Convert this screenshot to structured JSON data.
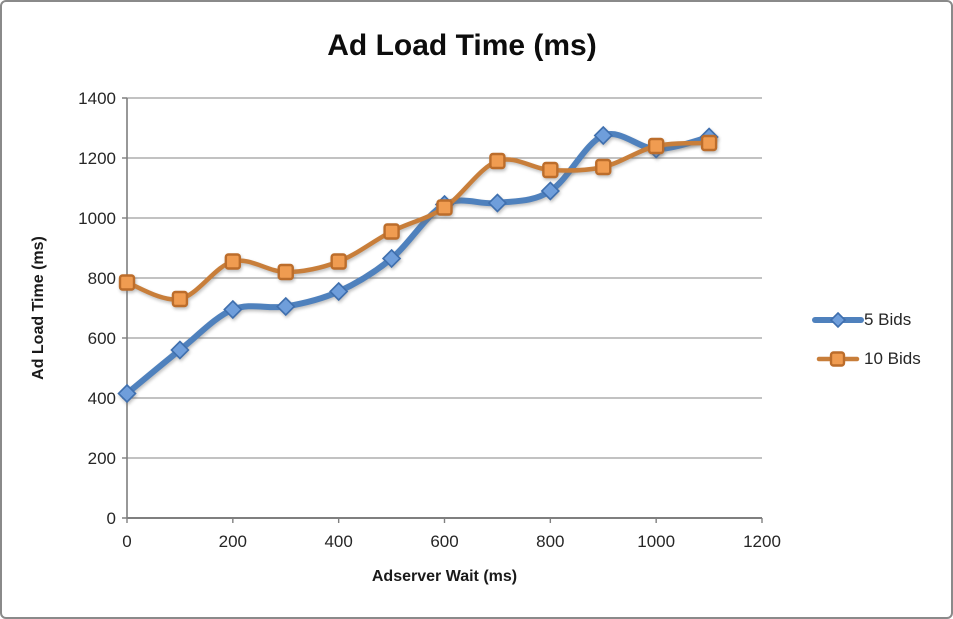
{
  "window": {
    "background": "#ffffff",
    "border_color": "#8a8a8a"
  },
  "chart_data": {
    "type": "line",
    "title": "Ad Load Time (ms)",
    "xlabel": "Adserver Wait (ms)",
    "ylabel": "Ad Load Time (ms)",
    "x": [
      0,
      100,
      200,
      300,
      400,
      500,
      600,
      700,
      800,
      900,
      1000,
      1100
    ],
    "series": [
      {
        "name": "5 Bids",
        "marker": "diamond",
        "line_color": "#4f81bd",
        "line_width": 6,
        "marker_fill": "#6f9edb",
        "marker_stroke": "#3f6fae",
        "values": [
          415,
          560,
          695,
          705,
          755,
          865,
          1045,
          1050,
          1090,
          1275,
          1230,
          1270
        ]
      },
      {
        "name": "10 Bids",
        "marker": "square",
        "line_color": "#c87e3a",
        "line_width": 4.5,
        "marker_fill": "#f09c51",
        "marker_stroke": "#bc6d2b",
        "values": [
          785,
          730,
          855,
          820,
          855,
          955,
          1035,
          1190,
          1160,
          1170,
          1240,
          1250
        ]
      }
    ],
    "xlim": [
      0,
      1200
    ],
    "ylim": [
      0,
      1400
    ],
    "x_ticks": [
      0,
      200,
      400,
      600,
      800,
      1000,
      1200
    ],
    "y_ticks": [
      0,
      200,
      400,
      600,
      800,
      1000,
      1200,
      1400
    ],
    "grid": "horizontal",
    "gridline_color": "#9d9d9d",
    "axis_color": "#7f7f7f",
    "smooth": true,
    "legend_position": "right"
  }
}
